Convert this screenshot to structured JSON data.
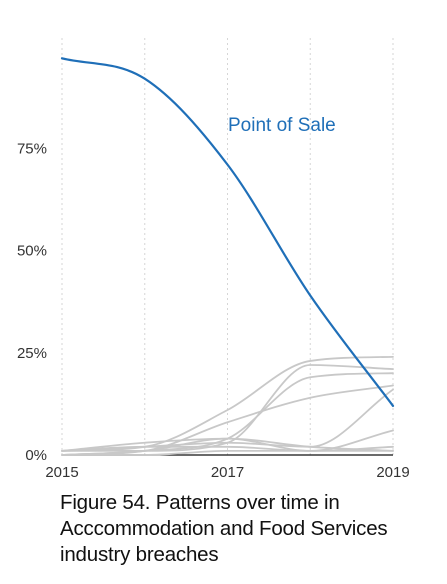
{
  "chart_data": {
    "type": "line",
    "title": "",
    "xlabel": "",
    "ylabel": "",
    "x": [
      2015,
      2016,
      2017,
      2018,
      2019
    ],
    "x_tick_labels": [
      "2015",
      "2017",
      "2019"
    ],
    "y_tick_labels": [
      "0%",
      "25%",
      "50%",
      "75%"
    ],
    "xlim": [
      2015,
      2019
    ],
    "ylim": [
      0,
      100
    ],
    "grid": "vertical dotted lines at each year",
    "highlight_color": "#1f6fb8",
    "background_color": "#c8c8c8",
    "series": [
      {
        "name": "Point of Sale",
        "highlight": true,
        "values": [
          97,
          92,
          71,
          39,
          12
        ]
      },
      {
        "highlight": false,
        "values": [
          1,
          1,
          3,
          22,
          21
        ]
      },
      {
        "highlight": false,
        "values": [
          1,
          2,
          11,
          23,
          24
        ]
      },
      {
        "highlight": false,
        "values": [
          0,
          1,
          8,
          14,
          17
        ]
      },
      {
        "highlight": false,
        "values": [
          0,
          1,
          4,
          19,
          20
        ]
      },
      {
        "highlight": false,
        "values": [
          1,
          2,
          3,
          2,
          16
        ]
      },
      {
        "highlight": false,
        "values": [
          1,
          3,
          4,
          1,
          6
        ]
      },
      {
        "highlight": false,
        "values": [
          0,
          1,
          4,
          2,
          1
        ]
      },
      {
        "highlight": false,
        "values": [
          1,
          2,
          2,
          1,
          2
        ]
      },
      {
        "highlight": false,
        "values": [
          0,
          0,
          1,
          1,
          1
        ]
      }
    ]
  },
  "caption": "Figure 54. Patterns over time in Acccommodation and Food Services industry breaches"
}
